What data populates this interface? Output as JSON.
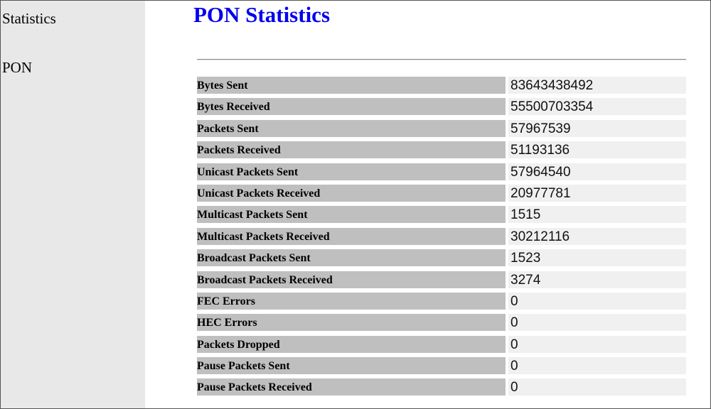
{
  "sidebar": {
    "items": [
      {
        "label": "Statistics"
      },
      {
        "label": "PON"
      }
    ]
  },
  "main": {
    "title": "PON Statistics",
    "stats": [
      {
        "label": "Bytes Sent",
        "value": "83643438492"
      },
      {
        "label": "Bytes Received",
        "value": "55500703354"
      },
      {
        "label": "Packets Sent",
        "value": "57967539"
      },
      {
        "label": "Packets Received",
        "value": "51193136"
      },
      {
        "label": "Unicast Packets Sent",
        "value": "57964540"
      },
      {
        "label": "Unicast Packets Received",
        "value": "20977781"
      },
      {
        "label": "Multicast Packets Sent",
        "value": "1515"
      },
      {
        "label": "Multicast Packets Received",
        "value": "30212116"
      },
      {
        "label": "Broadcast Packets Sent",
        "value": "1523"
      },
      {
        "label": "Broadcast Packets Received",
        "value": "3274"
      },
      {
        "label": "FEC Errors",
        "value": "0"
      },
      {
        "label": "HEC Errors",
        "value": "0"
      },
      {
        "label": "Packets Dropped",
        "value": "0"
      },
      {
        "label": "Pause Packets Sent",
        "value": "0"
      },
      {
        "label": "Pause Packets Received",
        "value": "0"
      }
    ]
  }
}
